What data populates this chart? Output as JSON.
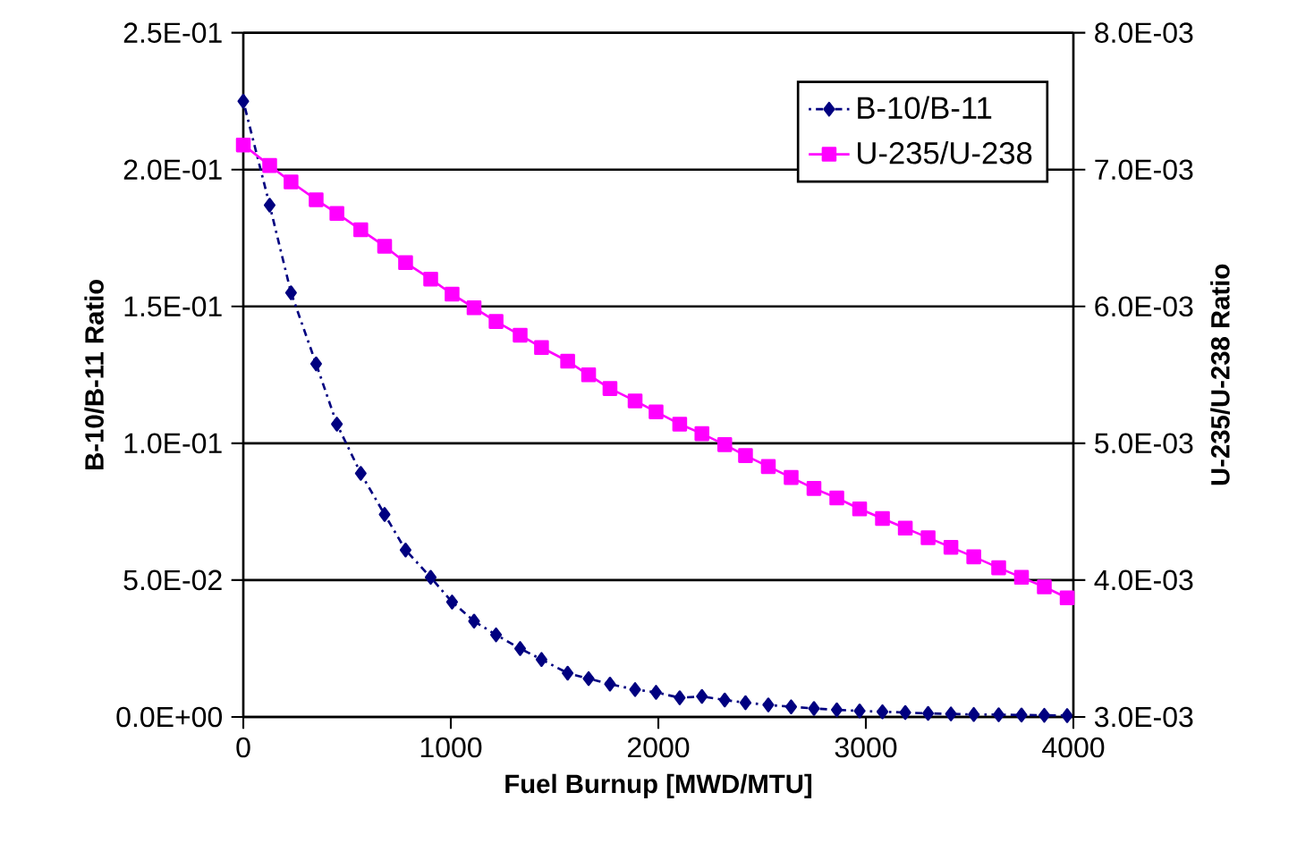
{
  "chart_data": {
    "type": "line",
    "xlabel": "Fuel Burnup [MWD/MTU]",
    "ylabel": "B-10/B-11 Ratio",
    "y2label": "U-235/U-238 Ratio",
    "x": [
      0,
      127,
      230,
      351,
      451,
      566,
      681,
      782,
      903,
      1006,
      1112,
      1218,
      1334,
      1437,
      1563,
      1664,
      1767,
      1888,
      1989,
      2103,
      2210,
      2320,
      2420,
      2530,
      2640,
      2750,
      2860,
      2970,
      3080,
      3190,
      3300,
      3410,
      3520,
      3640,
      3750,
      3860,
      3970
    ],
    "series": [
      {
        "name": "B-10/B-11",
        "color": "#000080",
        "marker": "diamond",
        "line_style": "dotted",
        "values": [
          0.225,
          0.187,
          0.155,
          0.129,
          0.107,
          0.089,
          0.074,
          0.061,
          0.051,
          0.042,
          0.035,
          0.03,
          0.025,
          0.021,
          0.016,
          0.014,
          0.012,
          0.01,
          0.009,
          0.007,
          0.0075,
          0.0062,
          0.0052,
          0.0044,
          0.0037,
          0.0031,
          0.0026,
          0.0022,
          0.0019,
          0.0016,
          0.0013,
          0.0011,
          0.0009,
          0.0008,
          0.0007,
          0.0006,
          0.0005
        ]
      },
      {
        "name": "U-235/U-238",
        "color": "#ff00ff",
        "marker": "square",
        "line_style": "solid",
        "axis": "y2",
        "values": [
          0.00718,
          0.00703,
          0.00691,
          0.00678,
          0.00668,
          0.00656,
          0.00644,
          0.00632,
          0.0062,
          0.00609,
          0.00599,
          0.00589,
          0.00579,
          0.0057,
          0.0056,
          0.0055,
          0.0054,
          0.00531,
          0.00523,
          0.00514,
          0.00507,
          0.00499,
          0.00491,
          0.00483,
          0.00475,
          0.00467,
          0.0046,
          0.00452,
          0.00445,
          0.00438,
          0.00431,
          0.00424,
          0.00417,
          0.00409,
          0.00402,
          0.00395,
          0.00387
        ]
      }
    ],
    "xlim": [
      0,
      4000
    ],
    "xticks": [
      0,
      1000,
      2000,
      3000,
      4000
    ],
    "ylim": [
      0,
      0.25
    ],
    "yticks": [
      {
        "value": 0,
        "label": "0.0E+00"
      },
      {
        "value": 0.05,
        "label": "5.0E-02"
      },
      {
        "value": 0.1,
        "label": "1.0E-01"
      },
      {
        "value": 0.15,
        "label": "1.5E-01"
      },
      {
        "value": 0.2,
        "label": "2.0E-01"
      },
      {
        "value": 0.25,
        "label": "2.5E-01"
      }
    ],
    "y2lim": [
      0.003,
      0.008
    ],
    "y2ticks": [
      {
        "value": 0.003,
        "label": "3.0E-03"
      },
      {
        "value": 0.004,
        "label": "4.0E-03"
      },
      {
        "value": 0.005,
        "label": "5.0E-03"
      },
      {
        "value": 0.006,
        "label": "6.0E-03"
      },
      {
        "value": 0.007,
        "label": "7.0E-03"
      },
      {
        "value": 0.008,
        "label": "8.0E-03"
      }
    ],
    "grid": "y",
    "legend": "top right"
  }
}
